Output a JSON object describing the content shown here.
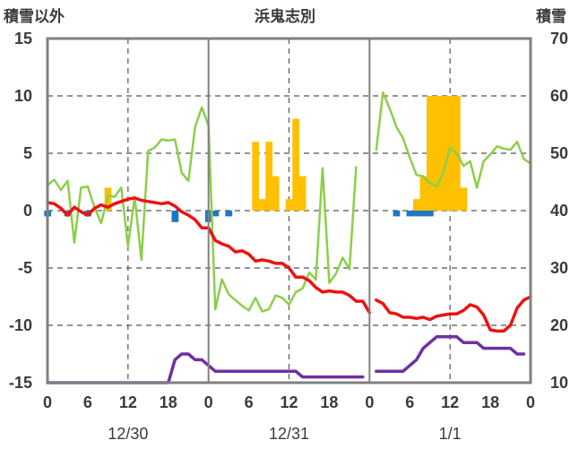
{
  "chart_data": {
    "type": "line",
    "title": "浜鬼志別",
    "left_axis_label": "積雪以外",
    "right_axis_label": "積雪",
    "left_ylim": [
      -15,
      15
    ],
    "left_yticks": [
      15,
      10,
      5,
      0,
      -5,
      -10,
      -15
    ],
    "right_ylim": [
      10,
      70
    ],
    "right_yticks": [
      70,
      60,
      50,
      40,
      30,
      20,
      10
    ],
    "xlim": [
      0,
      72
    ],
    "x_ticks": [
      0,
      6,
      12,
      18,
      24,
      30,
      36,
      42,
      48,
      54,
      60,
      66,
      72
    ],
    "x_tick_labels": [
      "0",
      "6",
      "12",
      "18",
      "0",
      "6",
      "12",
      "18",
      "0",
      "6",
      "12",
      "18",
      "0"
    ],
    "day_labels": [
      {
        "label": "12/30",
        "x": 12
      },
      {
        "label": "12/31",
        "x": 36
      },
      {
        "label": "1/1",
        "x": 60
      }
    ],
    "day_separators": [
      24,
      48
    ],
    "dashed_gridlines": [
      12,
      36,
      60
    ],
    "colors": {
      "temperature": "#ee1111",
      "green": "#8ccf4a",
      "snow_depth": "#7030a0",
      "precip_bar": "#ffc000",
      "negative_bar": "#1f77c4",
      "frame": "#808080"
    },
    "series": [
      {
        "key": "green",
        "axis": "left",
        "segments": [
          [
            [
              0,
              2.2
            ],
            [
              1,
              2.7
            ],
            [
              2,
              1.8
            ],
            [
              3,
              2.6
            ],
            [
              4,
              -2.8
            ],
            [
              5,
              2.0
            ],
            [
              6,
              2.1
            ],
            [
              7,
              0.3
            ],
            [
              8,
              -1.1
            ],
            [
              9,
              1.3
            ],
            [
              10,
              1.2
            ],
            [
              11,
              2.0
            ],
            [
              12,
              -3.1
            ],
            [
              13,
              1.2
            ],
            [
              14,
              -4.3
            ],
            [
              15,
              5.2
            ],
            [
              16,
              5.5
            ],
            [
              17,
              6.2
            ],
            [
              18,
              6.1
            ],
            [
              19,
              6.2
            ],
            [
              20,
              3.3
            ],
            [
              21,
              2.6
            ],
            [
              22,
              7.3
            ],
            [
              23,
              9.0
            ],
            [
              24,
              7.4
            ],
            [
              25,
              -8.6
            ],
            [
              26,
              -6.0
            ],
            [
              27,
              -7.3
            ],
            [
              28,
              -7.8
            ],
            [
              29,
              -8.3
            ],
            [
              30,
              -8.7
            ],
            [
              31,
              -7.6
            ],
            [
              32,
              -8.8
            ],
            [
              33,
              -8.6
            ],
            [
              34,
              -7.4
            ],
            [
              35,
              -7.6
            ],
            [
              36,
              -8.2
            ],
            [
              37,
              -7.1
            ],
            [
              38,
              -6.8
            ],
            [
              39,
              -5.4
            ],
            [
              40,
              -6.0
            ],
            [
              41,
              3.7
            ],
            [
              42,
              -6.3
            ],
            [
              43,
              -5.5
            ],
            [
              44,
              -4.1
            ],
            [
              45,
              -5.1
            ],
            [
              46,
              3.8
            ]
          ],
          [
            [
              49,
              5.3
            ],
            [
              50,
              10.3
            ],
            [
              51,
              8.9
            ],
            [
              52,
              7.3
            ],
            [
              53,
              6.3
            ],
            [
              54,
              4.6
            ],
            [
              55,
              3.1
            ],
            [
              56,
              3.0
            ],
            [
              57,
              2.4
            ],
            [
              58,
              2.1
            ],
            [
              59,
              3.3
            ],
            [
              60,
              5.5
            ],
            [
              61,
              5.0
            ],
            [
              62,
              3.9
            ],
            [
              63,
              4.3
            ],
            [
              64,
              2.0
            ],
            [
              65,
              4.3
            ],
            [
              66,
              4.9
            ],
            [
              67,
              5.6
            ],
            [
              68,
              5.4
            ],
            [
              69,
              5.3
            ],
            [
              70,
              6.0
            ],
            [
              71,
              4.5
            ],
            [
              72,
              4.1
            ]
          ]
        ]
      },
      {
        "key": "temperature",
        "axis": "left",
        "segments": [
          [
            [
              0,
              0.7
            ],
            [
              1,
              0.6
            ],
            [
              2,
              0.2
            ],
            [
              3,
              -0.4
            ],
            [
              4,
              0.3
            ],
            [
              5,
              -0.1
            ],
            [
              6,
              -0.4
            ],
            [
              7,
              0.2
            ],
            [
              8,
              0.5
            ],
            [
              9,
              0.3
            ],
            [
              10,
              0.6
            ],
            [
              11,
              0.8
            ],
            [
              12,
              1.0
            ],
            [
              13,
              1.1
            ],
            [
              14,
              0.9
            ],
            [
              15,
              0.8
            ],
            [
              16,
              0.7
            ],
            [
              17,
              0.6
            ],
            [
              18,
              0.7
            ],
            [
              19,
              0.4
            ],
            [
              20,
              -0.1
            ],
            [
              21,
              -0.4
            ],
            [
              22,
              -0.8
            ],
            [
              23,
              -1.5
            ],
            [
              24,
              -1.5
            ],
            [
              25,
              -2.6
            ],
            [
              26,
              -2.9
            ],
            [
              27,
              -3.1
            ],
            [
              28,
              -3.6
            ],
            [
              29,
              -3.5
            ],
            [
              30,
              -3.8
            ],
            [
              31,
              -4.4
            ],
            [
              32,
              -4.3
            ],
            [
              33,
              -4.4
            ],
            [
              34,
              -4.6
            ],
            [
              35,
              -4.6
            ],
            [
              36,
              -5.0
            ],
            [
              37,
              -5.8
            ],
            [
              38,
              -5.8
            ],
            [
              39,
              -6.1
            ],
            [
              40,
              -6.7
            ],
            [
              41,
              -7.1
            ],
            [
              42,
              -7.0
            ],
            [
              43,
              -7.1
            ],
            [
              44,
              -7.1
            ],
            [
              45,
              -7.4
            ],
            [
              46,
              -7.9
            ],
            [
              47,
              -7.9
            ],
            [
              48,
              -8.9
            ]
          ],
          [
            [
              49,
              -7.8
            ],
            [
              50,
              -8.1
            ],
            [
              51,
              -8.9
            ],
            [
              52,
              -9.0
            ],
            [
              53,
              -9.3
            ],
            [
              54,
              -9.3
            ],
            [
              55,
              -9.4
            ],
            [
              56,
              -9.3
            ],
            [
              57,
              -9.5
            ],
            [
              58,
              -9.2
            ],
            [
              59,
              -9.1
            ],
            [
              60,
              -9.0
            ],
            [
              61,
              -9.0
            ],
            [
              62,
              -8.7
            ],
            [
              63,
              -8.2
            ],
            [
              64,
              -8.4
            ],
            [
              65,
              -9.1
            ],
            [
              66,
              -10.4
            ],
            [
              67,
              -10.5
            ],
            [
              68,
              -10.5
            ],
            [
              69,
              -10.0
            ],
            [
              70,
              -8.5
            ],
            [
              71,
              -7.8
            ],
            [
              72,
              -7.5
            ]
          ]
        ]
      },
      {
        "key": "snow_depth",
        "axis": "right",
        "segments": [
          [
            [
              0,
              10
            ],
            [
              18,
              10
            ],
            [
              19,
              14
            ],
            [
              20,
              15
            ],
            [
              21,
              15
            ],
            [
              22,
              14
            ],
            [
              23,
              14
            ],
            [
              24,
              13
            ],
            [
              25,
              12
            ],
            [
              26,
              12
            ],
            [
              37,
              12
            ],
            [
              38,
              11
            ],
            [
              47,
              11
            ]
          ],
          [
            [
              49,
              12
            ],
            [
              53,
              12
            ],
            [
              55,
              14
            ],
            [
              56,
              16
            ],
            [
              58,
              18
            ],
            [
              61,
              18
            ],
            [
              62,
              17
            ],
            [
              64,
              17
            ],
            [
              65,
              16
            ],
            [
              69,
              16
            ],
            [
              70,
              15
            ],
            [
              71,
              15
            ]
          ]
        ]
      }
    ],
    "bars": {
      "precipitation": [
        {
          "x": 9,
          "y": 2
        },
        {
          "x": 31,
          "y": 6
        },
        {
          "x": 32,
          "y": 1
        },
        {
          "x": 33,
          "y": 6
        },
        {
          "x": 34,
          "y": 3
        },
        {
          "x": 36,
          "y": 1
        },
        {
          "x": 37,
          "y": 8
        },
        {
          "x": 38,
          "y": 3
        },
        {
          "x": 55,
          "y": 1
        },
        {
          "x": 56,
          "y": 3
        },
        {
          "x": 57,
          "y": 10
        },
        {
          "x": 58,
          "y": 10
        },
        {
          "x": 59,
          "y": 10
        },
        {
          "x": 60,
          "y": 10
        },
        {
          "x": 61,
          "y": 10
        },
        {
          "x": 62,
          "y": 2
        }
      ],
      "negative": [
        {
          "x": 0,
          "y": -0.5
        },
        {
          "x": 3,
          "y": -0.5
        },
        {
          "x": 6,
          "y": -0.5
        },
        {
          "x": 19,
          "y": -1
        },
        {
          "x": 24,
          "y": -1
        },
        {
          "x": 25,
          "y": -0.5
        },
        {
          "x": 27,
          "y": -0.5
        },
        {
          "x": 52,
          "y": -0.5
        },
        {
          "x": 54,
          "y": -0.5
        },
        {
          "x": 55,
          "y": -0.5
        },
        {
          "x": 56,
          "y": -0.5
        },
        {
          "x": 57,
          "y": -0.5
        }
      ]
    }
  }
}
